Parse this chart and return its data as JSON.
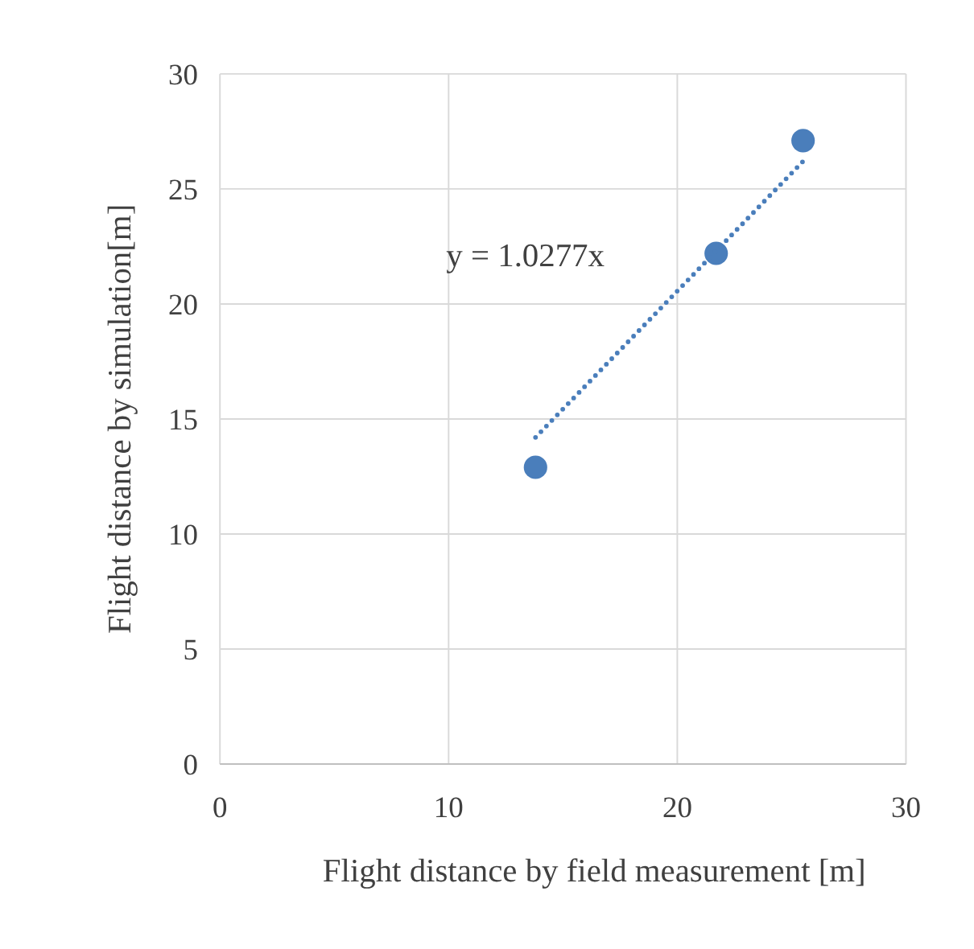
{
  "chart_data": {
    "type": "scatter",
    "xlabel": "Flight  distance by field measurement  [m]",
    "ylabel": "Flight  distance by simulation[m]",
    "series": [
      {
        "color": "#4a7ebb",
        "x": [
          13.8,
          21.7,
          25.5
        ],
        "values": [
          12.9,
          22.2,
          27.1
        ],
        "marker": "circle"
      },
      {
        "type": "line",
        "color": "#4a7ebb",
        "x": [
          13.8,
          25.5
        ],
        "values": [
          14.2,
          26.2
        ],
        "line_style": "dotted",
        "marker": "none"
      }
    ],
    "annotations": [
      "y = 1.0277x"
    ],
    "xlim": [
      0,
      30
    ],
    "ylim": [
      0,
      30
    ],
    "xticks": [
      0,
      10,
      20,
      30
    ],
    "yticks": [
      0,
      5,
      10,
      15,
      20,
      25,
      30
    ],
    "grid": true
  }
}
